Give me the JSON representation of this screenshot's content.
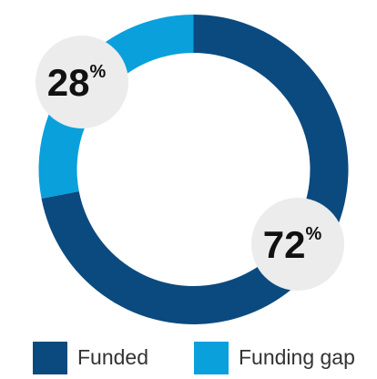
{
  "chart_data": {
    "type": "donut",
    "categories": [
      "Funded",
      "Funding gap"
    ],
    "values": [
      72,
      28
    ],
    "value_labels": [
      "72%",
      "28%"
    ],
    "colors": [
      "#0b4a7f",
      "#0aa0dc"
    ]
  }
}
